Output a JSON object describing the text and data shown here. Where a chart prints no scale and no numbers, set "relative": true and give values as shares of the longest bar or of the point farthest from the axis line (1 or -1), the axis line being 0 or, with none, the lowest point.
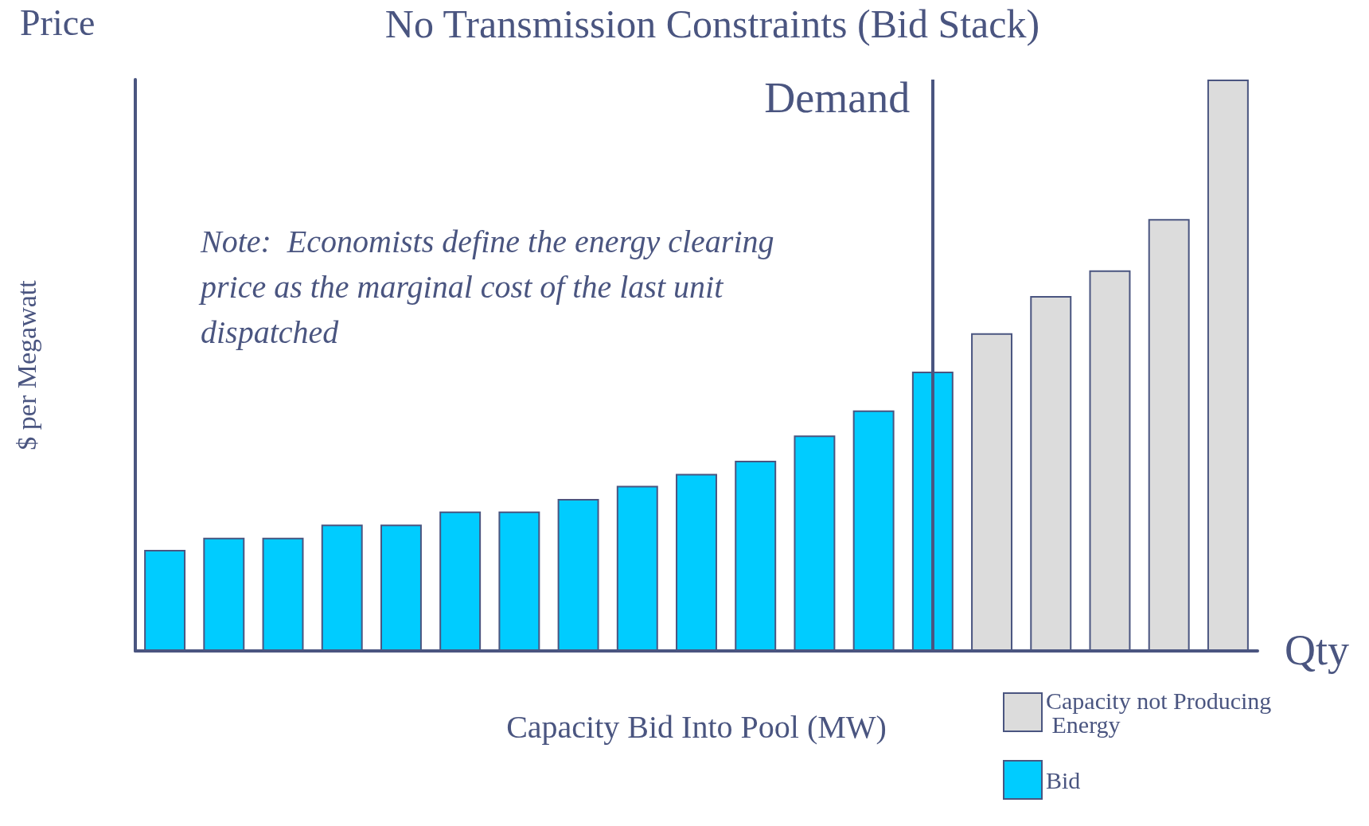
{
  "chart_data": {
    "type": "bar",
    "title": "No Transmission Constraints (Bid Stack)",
    "ylabel": "$ per Megawatt",
    "xlabel": "Capacity Bid Into Pool (MW)",
    "annotations": [
      "Price",
      "Qty",
      "Note:  Economists define the energy clearing price as the marginal cost of the last unit dispatched",
      "Demand"
    ],
    "relative": true,
    "categories": [
      null,
      null,
      null,
      null,
      null,
      null,
      null,
      null,
      null,
      null,
      null,
      null,
      null,
      null,
      null,
      null,
      null,
      null,
      null
    ],
    "series": [
      {
        "name": "Capacity not Producing Energy",
        "color": "#dcdcdc",
        "values": [
          null,
          null,
          null,
          null,
          null,
          null,
          null,
          null,
          null,
          null,
          null,
          null,
          null,
          null,
          0.556,
          0.621,
          0.666,
          0.756,
          1
        ]
      },
      {
        "name": "Bid",
        "color": "#00ccff",
        "values": [
          0.177,
          0.198,
          0.198,
          0.221,
          0.221,
          0.244,
          0.244,
          0.266,
          0.289,
          0.31,
          0.333,
          0.377,
          0.421,
          0.489,
          null,
          null,
          null,
          null,
          null
        ]
      }
    ],
    "legend": "bottom right",
    "grid": false,
    "stacked": true
  }
}
